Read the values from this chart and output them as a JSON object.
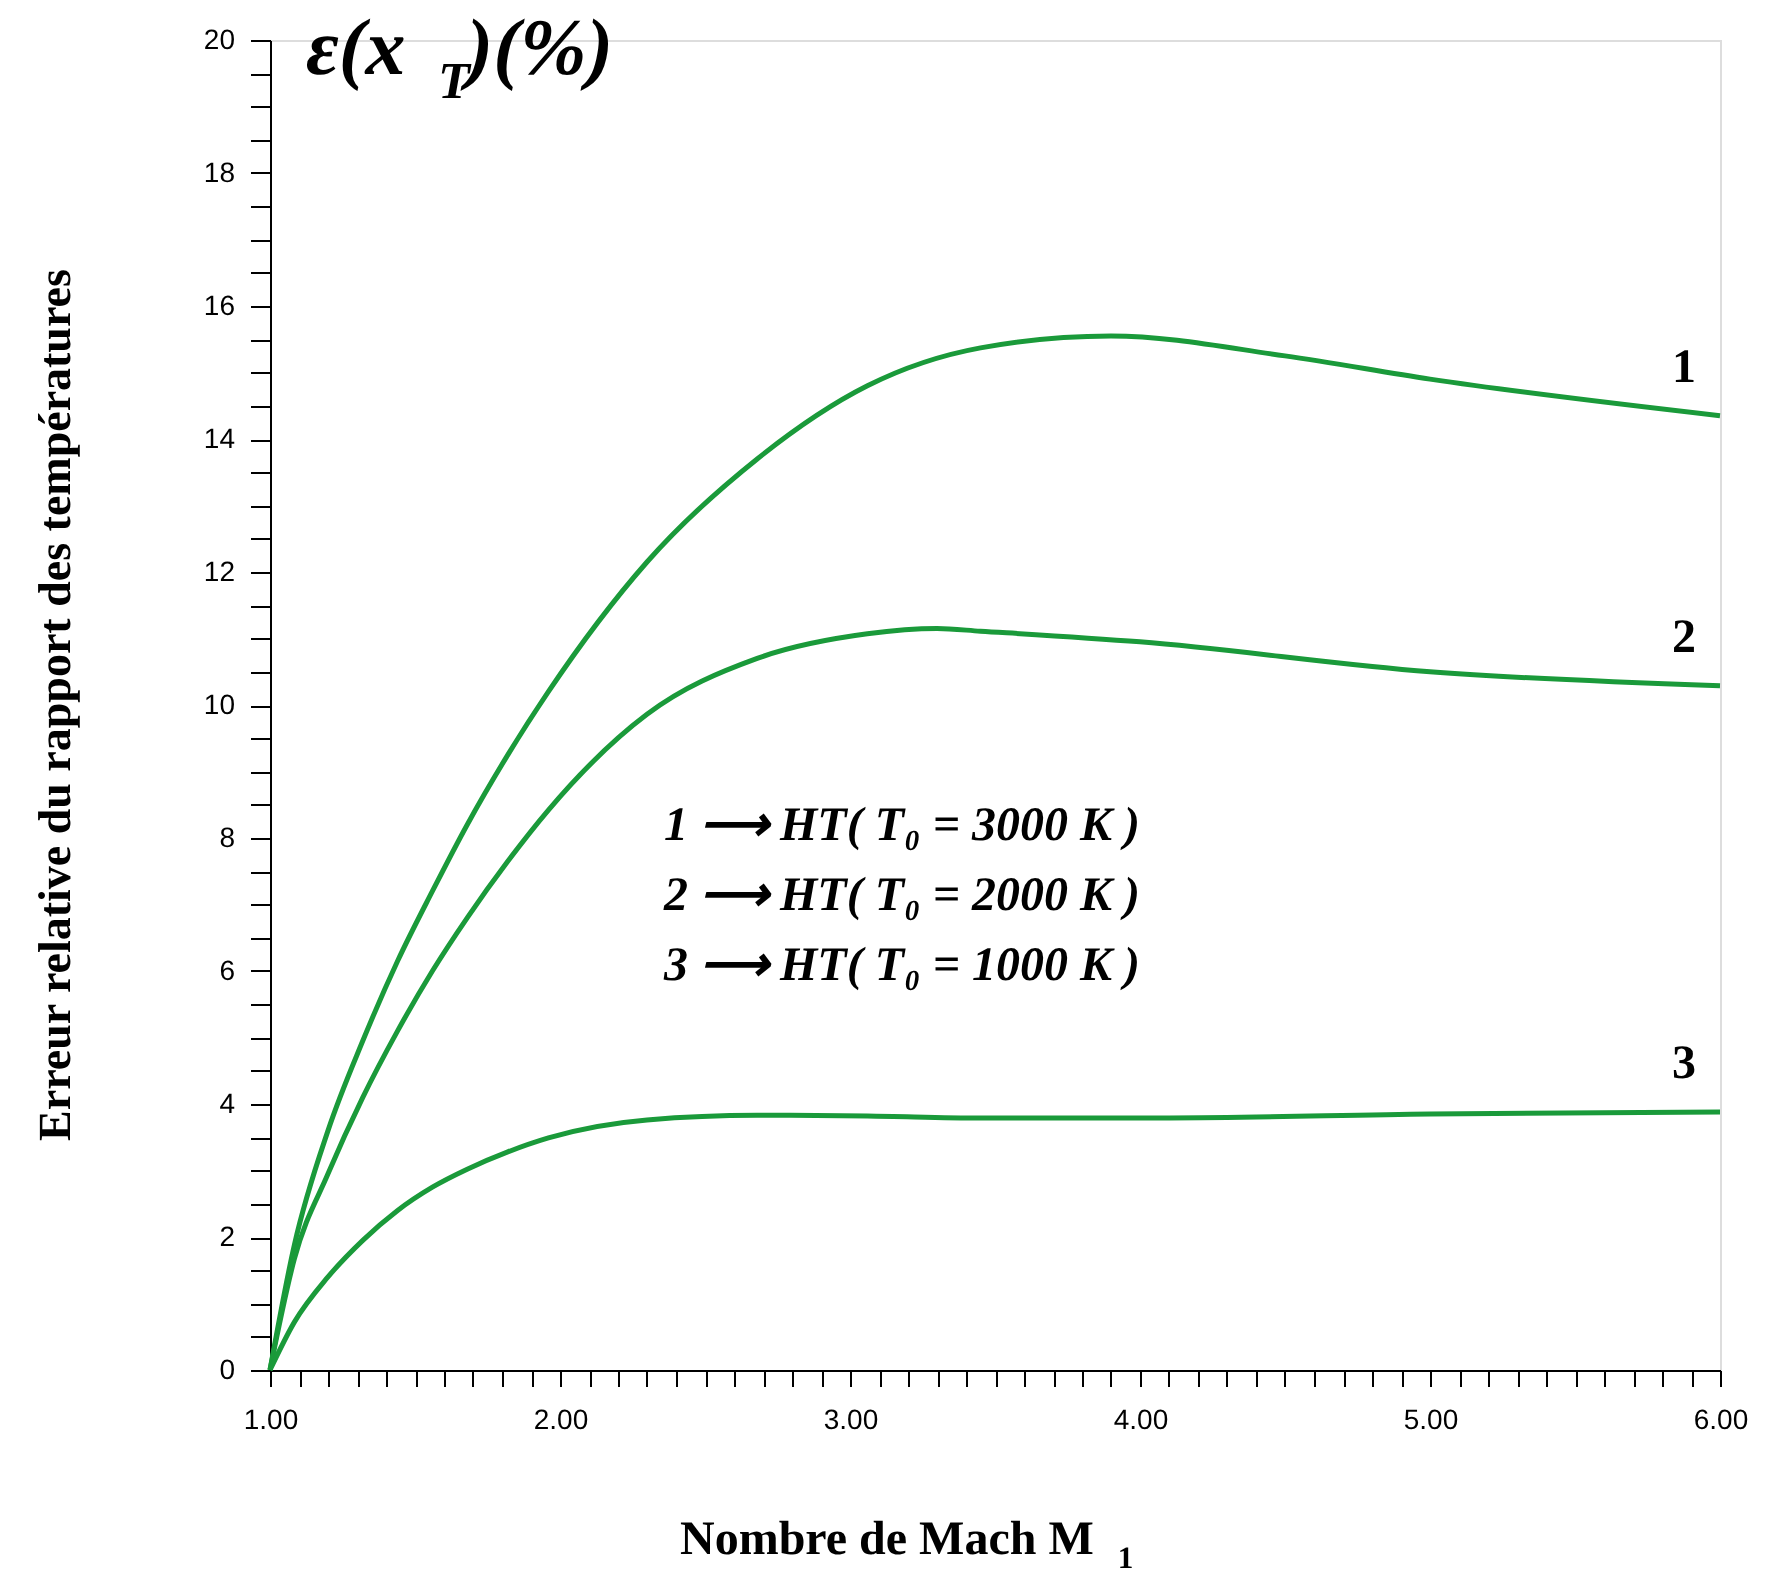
{
  "chart_data": {
    "type": "line",
    "title": "ε(x$_{T}$)(%)",
    "xlabel": "Nombre de Mach M$_{1}$",
    "ylabel": "Erreur relative du rapport des températures",
    "series": [
      {
        "color": "#1a9a3a",
        "x": [
          1,
          1.084,
          1.2,
          1.32,
          1.44,
          1.56,
          1.68,
          1.82,
          1.96,
          2.3,
          2.68,
          3.06,
          3.45,
          3.9,
          4.5,
          5.0,
          6.0
        ],
        "values": [
          0,
          1.88,
          3.6,
          4.95,
          6.15,
          7.2,
          8.2,
          9.25,
          10.2,
          12.15,
          13.7,
          14.8,
          15.37,
          15.55,
          15.25,
          14.9,
          14.35
        ]
      },
      {
        "color": "#1a9a3a",
        "x": [
          1,
          1.084,
          1.2,
          1.32,
          1.44,
          1.56,
          1.68,
          1.82,
          1.96,
          2.3,
          2.68,
          3.06,
          3.3,
          3.45,
          4.0,
          5.0,
          6.0
        ],
        "values": [
          0,
          1.67,
          2.95,
          4.1,
          5.1,
          6.0,
          6.8,
          7.65,
          8.42,
          9.86,
          10.7,
          11.07,
          11.15,
          11.11,
          10.95,
          10.5,
          10.29
        ]
      },
      {
        "color": "#1a9a3a",
        "x": [
          1,
          1.084,
          1.2,
          1.32,
          1.44,
          1.56,
          1.68,
          1.82,
          1.96,
          2.3,
          2.68,
          3.06,
          3.45,
          4.1,
          5.0,
          6.0
        ],
        "values": [
          0,
          0.72,
          1.4,
          1.95,
          2.4,
          2.75,
          3.02,
          3.28,
          3.49,
          3.76,
          3.83,
          3.82,
          3.79,
          3.79,
          3.85,
          3.88
        ]
      }
    ],
    "annotations": [
      "1",
      "2",
      "3",
      "1 ⟶ HT( T₀ = 3000 K )",
      "2 ⟶ HT( T₀ = 2000 K )",
      "3 ⟶ HT( T₀ = 1000 K )"
    ],
    "xlim": [
      1,
      6
    ],
    "ylim": [
      0,
      20
    ],
    "xticks": [
      {
        "value": 1,
        "label": "1.00"
      },
      {
        "value": 1.1,
        "label": null
      },
      {
        "value": 1.2,
        "label": null
      },
      {
        "value": 1.3,
        "label": null
      },
      {
        "value": 1.4,
        "label": null
      },
      {
        "value": 1.5,
        "label": null
      },
      {
        "value": 1.6,
        "label": null
      },
      {
        "value": 1.7,
        "label": null
      },
      {
        "value": 1.8,
        "label": null
      },
      {
        "value": 1.9,
        "label": null
      },
      {
        "value": 2,
        "label": "2.00"
      },
      {
        "value": 2.1,
        "label": null
      },
      {
        "value": 2.2,
        "label": null
      },
      {
        "value": 2.3,
        "label": null
      },
      {
        "value": 2.4,
        "label": null
      },
      {
        "value": 2.5,
        "label": null
      },
      {
        "value": 2.6,
        "label": null
      },
      {
        "value": 2.7,
        "label": null
      },
      {
        "value": 2.8,
        "label": null
      },
      {
        "value": 2.9,
        "label": null
      },
      {
        "value": 3,
        "label": "3.00"
      },
      {
        "value": 3.1,
        "label": null
      },
      {
        "value": 3.2,
        "label": null
      },
      {
        "value": 3.3,
        "label": null
      },
      {
        "value": 3.4,
        "label": null
      },
      {
        "value": 3.5,
        "label": null
      },
      {
        "value": 3.6,
        "label": null
      },
      {
        "value": 3.7,
        "label": null
      },
      {
        "value": 3.8,
        "label": null
      },
      {
        "value": 3.9,
        "label": null
      },
      {
        "value": 4,
        "label": "4.00"
      },
      {
        "value": 4.1,
        "label": null
      },
      {
        "value": 4.2,
        "label": null
      },
      {
        "value": 4.3,
        "label": null
      },
      {
        "value": 4.4,
        "label": null
      },
      {
        "value": 4.5,
        "label": null
      },
      {
        "value": 4.6,
        "label": null
      },
      {
        "value": 4.7,
        "label": null
      },
      {
        "value": 4.8,
        "label": null
      },
      {
        "value": 4.9,
        "label": null
      },
      {
        "value": 5,
        "label": "5.00"
      },
      {
        "value": 5.1,
        "label": null
      },
      {
        "value": 5.2,
        "label": null
      },
      {
        "value": 5.3,
        "label": null
      },
      {
        "value": 5.4,
        "label": null
      },
      {
        "value": 5.5,
        "label": null
      },
      {
        "value": 5.6,
        "label": null
      },
      {
        "value": 5.7,
        "label": null
      },
      {
        "value": 5.8,
        "label": null
      },
      {
        "value": 5.9,
        "label": null
      },
      {
        "value": 6,
        "label": "6.00"
      }
    ],
    "yticks": [
      0,
      {
        "value": 0.5,
        "label": null
      },
      {
        "value": 1,
        "label": null
      },
      {
        "value": 1.5,
        "label": null
      },
      2,
      {
        "value": 2.5,
        "label": null
      },
      {
        "value": 3,
        "label": null
      },
      {
        "value": 3.5,
        "label": null
      },
      4,
      {
        "value": 4.5,
        "label": null
      },
      {
        "value": 5,
        "label": null
      },
      {
        "value": 5.5,
        "label": null
      },
      6,
      {
        "value": 6.5,
        "label": null
      },
      {
        "value": 7,
        "label": null
      },
      {
        "value": 7.5,
        "label": null
      },
      8,
      {
        "value": 8.5,
        "label": null
      },
      {
        "value": 9,
        "label": null
      },
      {
        "value": 9.5,
        "label": null
      },
      10,
      {
        "value": 10.5,
        "label": null
      },
      {
        "value": 11,
        "label": null
      },
      {
        "value": 11.5,
        "label": null
      },
      12,
      {
        "value": 12.5,
        "label": null
      },
      {
        "value": 13,
        "label": null
      },
      {
        "value": 13.5,
        "label": null
      },
      14,
      {
        "value": 14.5,
        "label": null
      },
      {
        "value": 15,
        "label": null
      },
      {
        "value": 15.5,
        "label": null
      },
      16,
      {
        "value": 16.5,
        "label": null
      },
      {
        "value": 17,
        "label": null
      },
      {
        "value": 17.5,
        "label": null
      },
      18,
      {
        "value": 18.5,
        "label": null
      },
      {
        "value": 19,
        "label": null
      },
      {
        "value": 19.5,
        "label": null
      },
      20
    ],
    "grid": false,
    "marker": "none",
    "line_style": "solid"
  }
}
